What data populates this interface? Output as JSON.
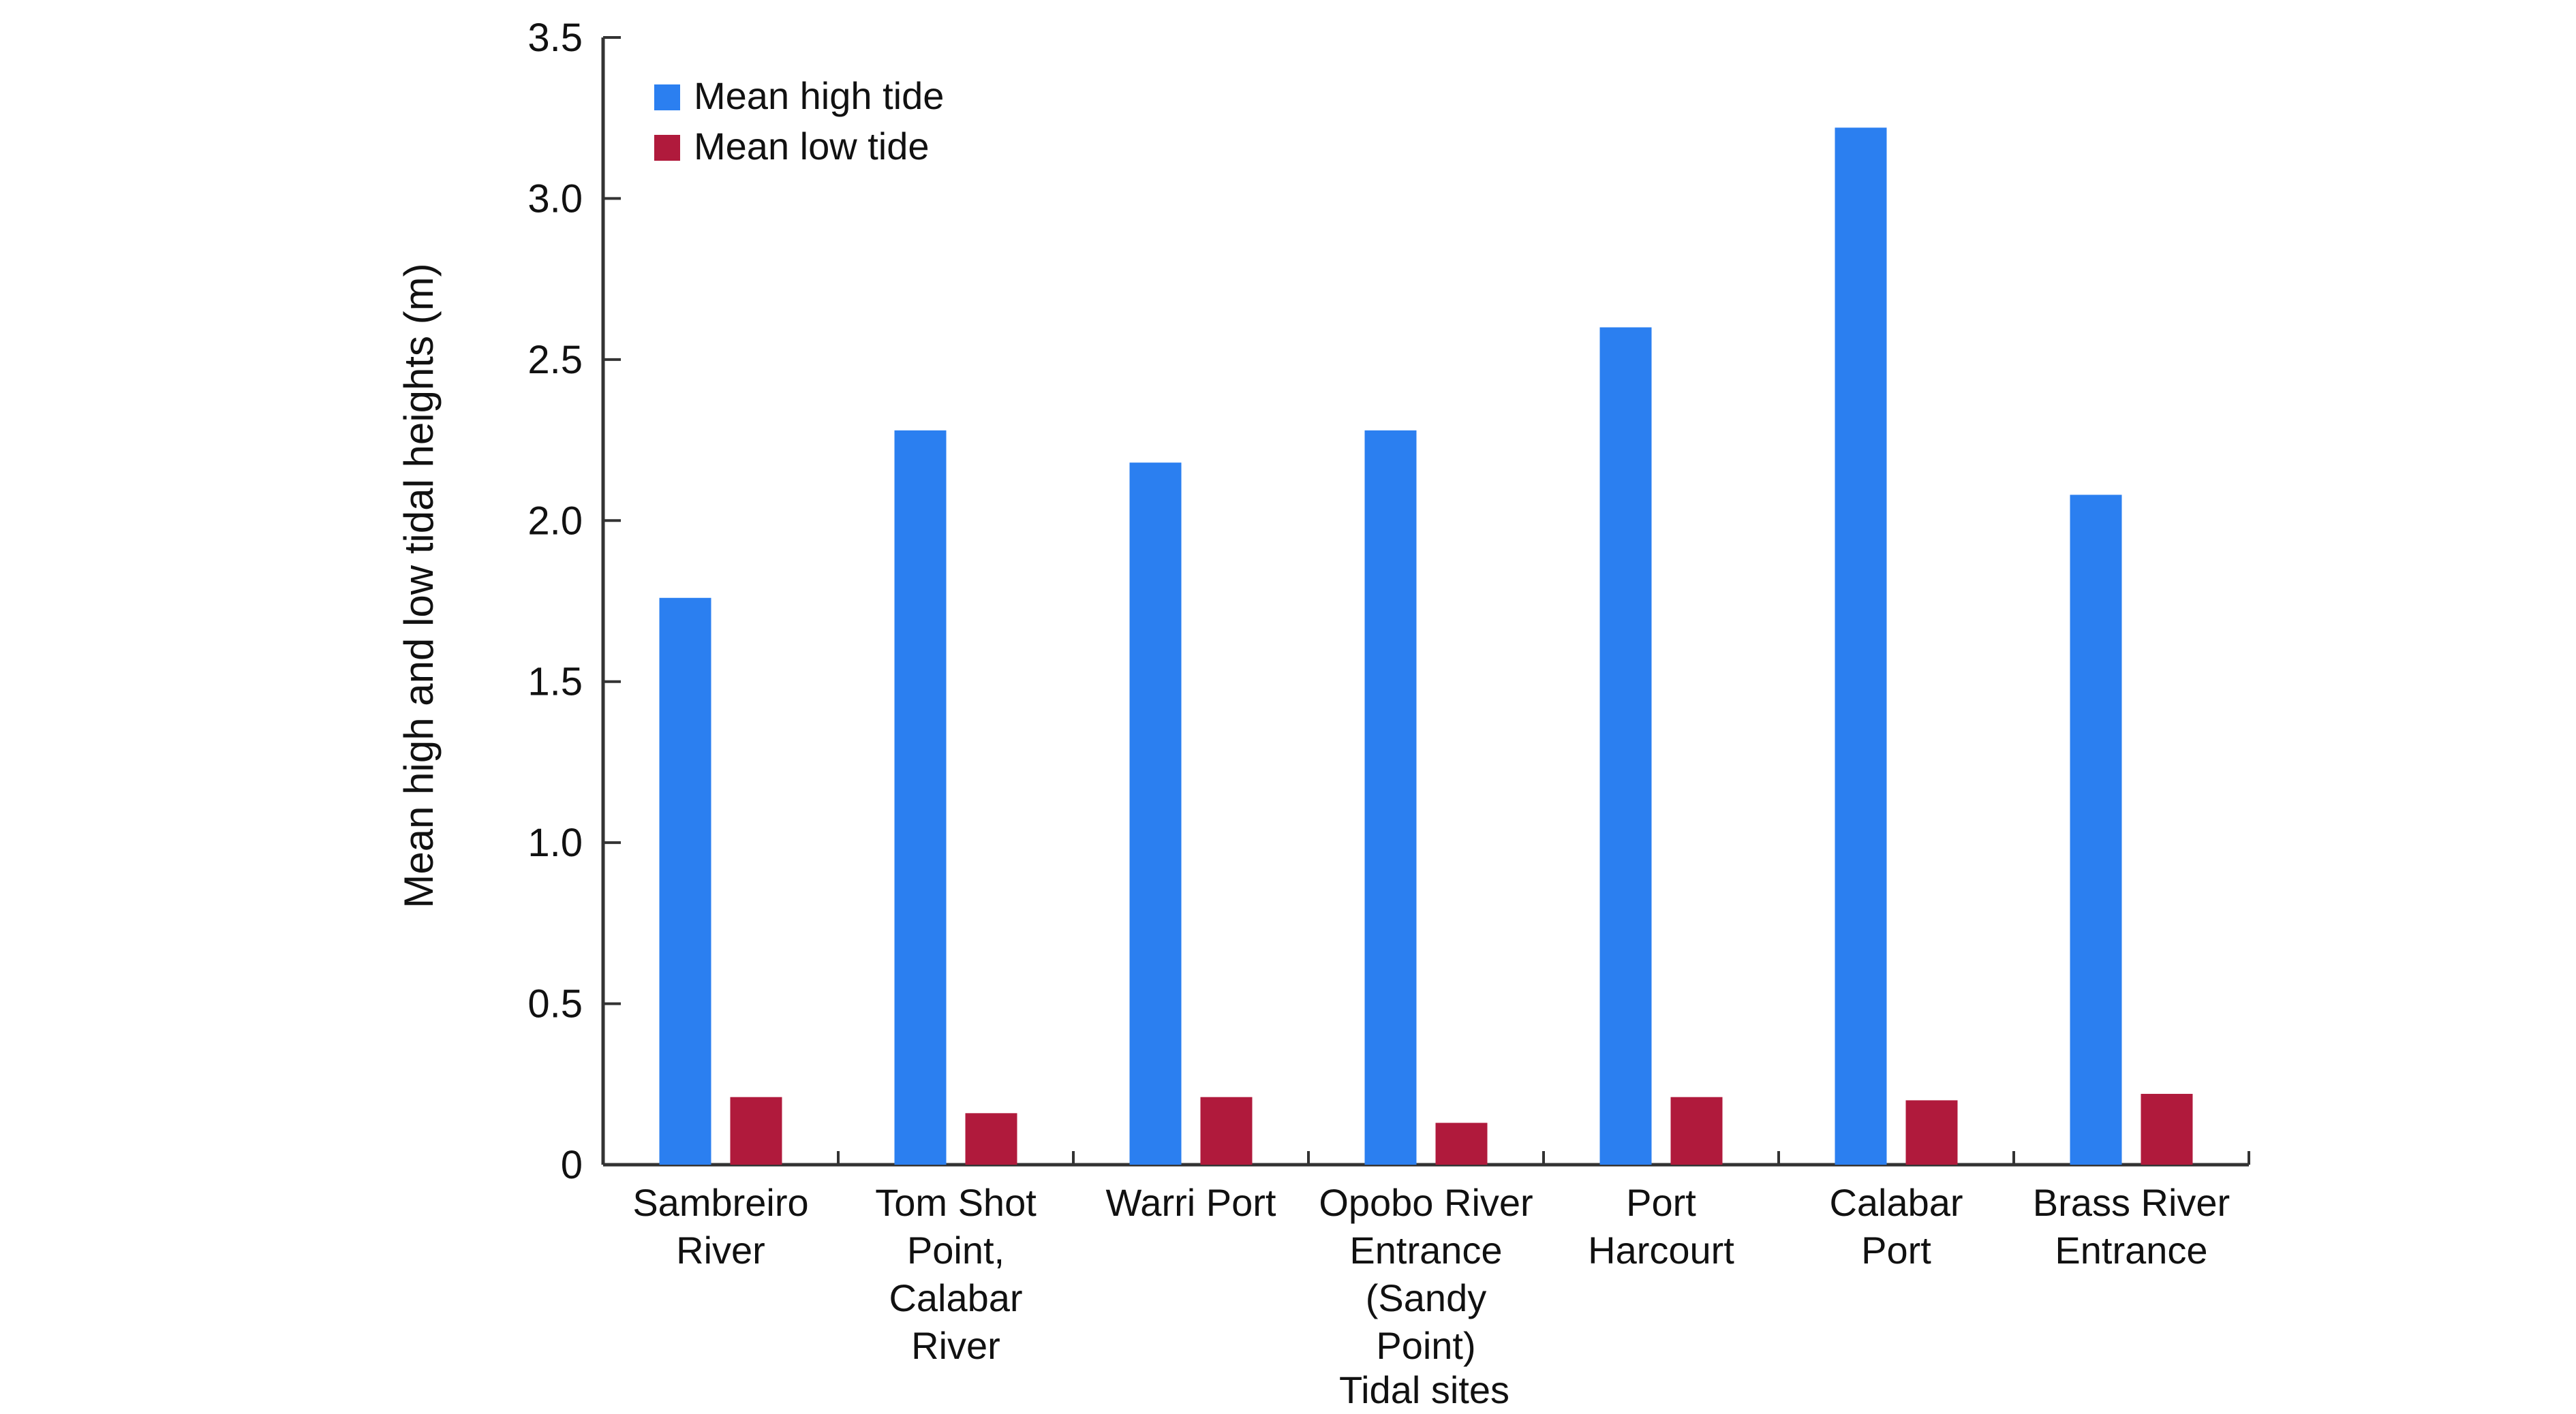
{
  "chart_data": {
    "type": "bar",
    "title": "",
    "xlabel": "Tidal sites",
    "ylabel": "Mean high and low tidal heights (m)",
    "ylim": [
      0,
      3.5
    ],
    "yticks": [
      {
        "value": 0,
        "label": "0"
      },
      {
        "value": 0.5,
        "label": "0.5"
      },
      {
        "value": 1.0,
        "label": "1.0"
      },
      {
        "value": 1.5,
        "label": "1.5"
      },
      {
        "value": 2.0,
        "label": "2.0"
      },
      {
        "value": 2.5,
        "label": "2.5"
      },
      {
        "value": 3.0,
        "label": "3.0"
      },
      {
        "value": 3.5,
        "label": "3.5"
      }
    ],
    "categories": [
      [
        "Sambreiro",
        "River"
      ],
      [
        "Tom Shot",
        "Point,",
        "Calabar",
        "River"
      ],
      [
        "Warri Port"
      ],
      [
        "Opobo River",
        "Entrance",
        "(Sandy",
        "Point)"
      ],
      [
        "Port",
        "Harcourt"
      ],
      [
        "Calabar",
        "Port"
      ],
      [
        "Brass River",
        "Entrance"
      ]
    ],
    "series": [
      {
        "name": "Mean high tide",
        "color": "#2B7FF0",
        "values": [
          1.76,
          2.28,
          2.18,
          2.28,
          2.6,
          3.22,
          2.08
        ]
      },
      {
        "name": "Mean low tide",
        "color": "#B01A3C",
        "values": [
          0.21,
          0.16,
          0.21,
          0.13,
          0.21,
          0.2,
          0.22
        ]
      }
    ],
    "legend_position": "top-left",
    "grid": false
  }
}
